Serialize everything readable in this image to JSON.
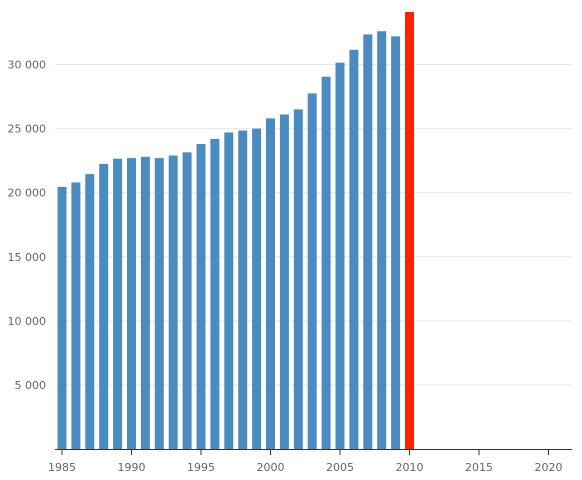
{
  "chart_data": {
    "type": "bar",
    "x": [
      1985,
      1986,
      1987,
      1988,
      1989,
      1990,
      1991,
      1992,
      1993,
      1994,
      1995,
      1996,
      1997,
      1998,
      1999,
      2000,
      2001,
      2002,
      2003,
      2004,
      2005,
      2006,
      2007,
      2008,
      2009,
      2010
    ],
    "values": [
      20450,
      20800,
      21450,
      22250,
      22650,
      22700,
      22800,
      22700,
      22900,
      23150,
      23800,
      24200,
      24700,
      24850,
      25000,
      25800,
      26100,
      26500,
      27750,
      29050,
      30150,
      31150,
      32350,
      32600,
      32200,
      34100
    ],
    "highlight_index": 25,
    "colors": {
      "bar": "#4a8cbf",
      "highlight": "#ff2200"
    },
    "xlim": [
      1985,
      2021
    ],
    "ylim": [
      0,
      34100
    ],
    "x_ticks": [
      "1985",
      "1990",
      "1995",
      "2000",
      "2005",
      "2010",
      "2015",
      "2020"
    ],
    "y_ticks": [
      "5 000",
      "10 000",
      "15 000",
      "20 000",
      "25 000",
      "30 000"
    ],
    "grid": true,
    "title": "",
    "xlabel": "",
    "ylabel": ""
  }
}
